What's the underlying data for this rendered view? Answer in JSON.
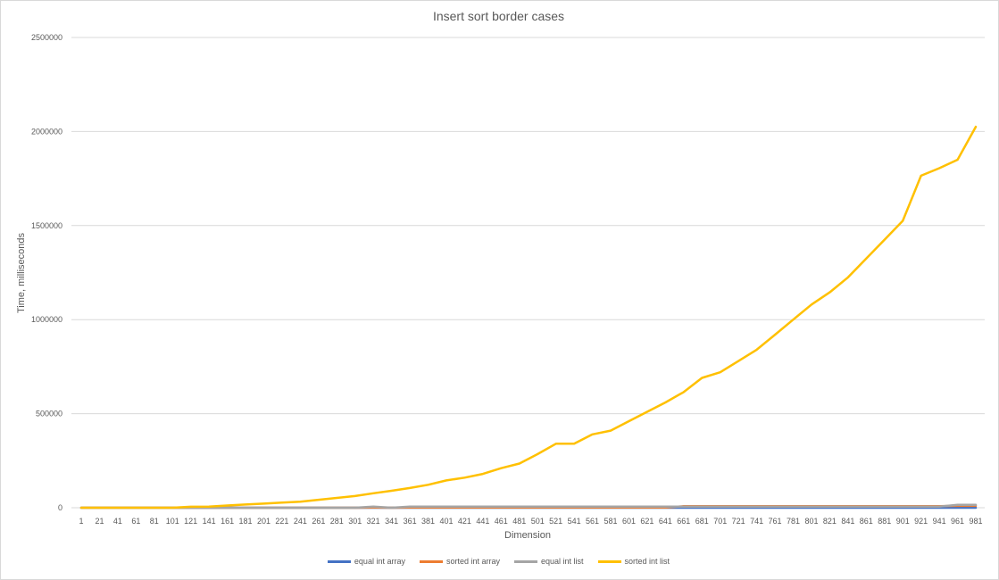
{
  "chart_data": {
    "type": "line",
    "title": "Insert sort border cases",
    "xlabel": "Dimension",
    "ylabel": "Time, milliseconds",
    "ylim": [
      0,
      2500000
    ],
    "yticks": [
      0,
      500000,
      1000000,
      1500000,
      2000000,
      2500000
    ],
    "ytick_labels": [
      "0",
      "500000",
      "1000000",
      "1500000",
      "2000000",
      "2500000"
    ],
    "grid": "horizontal",
    "legend_position": "bottom",
    "x": [
      1,
      21,
      41,
      61,
      81,
      101,
      121,
      141,
      161,
      181,
      201,
      221,
      241,
      261,
      281,
      301,
      321,
      341,
      361,
      381,
      401,
      421,
      441,
      461,
      481,
      501,
      521,
      541,
      561,
      581,
      601,
      621,
      641,
      661,
      681,
      701,
      721,
      741,
      761,
      781,
      801,
      821,
      841,
      861,
      881,
      901,
      921,
      941,
      961,
      981
    ],
    "series": [
      {
        "name": "equal int array",
        "color": "#4472c4",
        "values": [
          0,
          0,
          0,
          0,
          0,
          0,
          0,
          0,
          0,
          0,
          0,
          0,
          0,
          0,
          0,
          0,
          0,
          0,
          0,
          0,
          0,
          0,
          0,
          0,
          0,
          0,
          0,
          0,
          0,
          0,
          0,
          0,
          0,
          0,
          0,
          0,
          0,
          0,
          0,
          0,
          0,
          0,
          0,
          0,
          0,
          0,
          0,
          0,
          0,
          0
        ]
      },
      {
        "name": "sorted int array",
        "color": "#ed7d31",
        "values": [
          0,
          0,
          0,
          0,
          0,
          0,
          0,
          0,
          0,
          0,
          0,
          0,
          0,
          0,
          0,
          0,
          1000,
          0,
          1000,
          1000,
          1000,
          1000,
          1000,
          1000,
          1000,
          1000,
          1000,
          1000,
          1000,
          1000,
          1000,
          1000,
          1000,
          8000,
          8000,
          8000,
          8000,
          8000,
          8000,
          8000,
          8000,
          8000,
          8000,
          8000,
          8000,
          8000,
          8000,
          8000,
          10000,
          10000
        ]
      },
      {
        "name": "equal int list",
        "color": "#a5a5a5",
        "values": [
          0,
          0,
          0,
          0,
          0,
          0,
          0,
          0,
          0,
          0,
          0,
          0,
          0,
          0,
          0,
          0,
          6000,
          0,
          6000,
          6000,
          6000,
          6000,
          6000,
          6000,
          6000,
          6000,
          6000,
          6000,
          6000,
          6000,
          6000,
          6000,
          6000,
          6000,
          6000,
          6000,
          6000,
          6000,
          6000,
          6000,
          6000,
          6000,
          6000,
          6000,
          6000,
          6000,
          6000,
          6000,
          15000,
          15000
        ]
      },
      {
        "name": "sorted int list",
        "color": "#ffc000",
        "values": [
          0,
          0,
          0,
          0,
          0,
          0,
          5000,
          6000,
          12000,
          17000,
          22000,
          27000,
          32000,
          42000,
          52000,
          62000,
          77000,
          90000,
          105000,
          122000,
          145000,
          160000,
          180000,
          210000,
          235000,
          285000,
          340000,
          340000,
          390000,
          410000,
          460000,
          510000,
          560000,
          615000,
          690000,
          720000,
          780000,
          840000,
          920000,
          1000000,
          1080000,
          1145000,
          1225000,
          1325000,
          1425000,
          1525000,
          1765000,
          1805000,
          1850000,
          2025000
        ]
      }
    ]
  }
}
